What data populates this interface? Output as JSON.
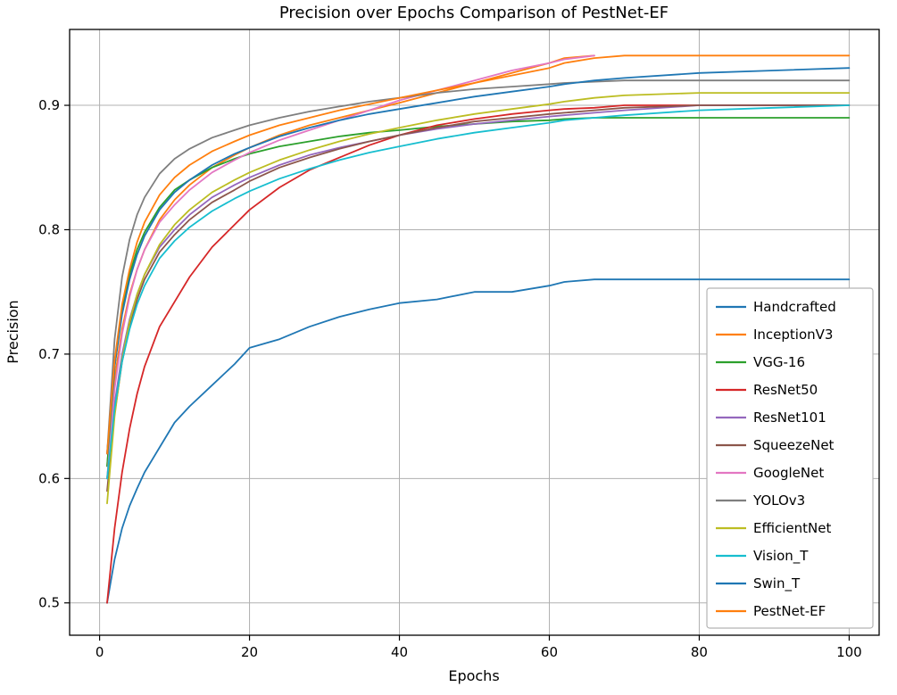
{
  "chart_data": {
    "type": "line",
    "title": "Precision over Epochs Comparison of PestNet-EF",
    "xlabel": "Epochs",
    "ylabel": "Precision",
    "x_ticks": [
      0,
      20,
      40,
      60,
      80,
      100
    ],
    "y_ticks": [
      0.5,
      0.6,
      0.7,
      0.8,
      0.9
    ],
    "xlim": [
      -4,
      104
    ],
    "ylim": [
      0.474,
      0.961
    ],
    "grid": true,
    "legend_position": "lower right",
    "grid_color": "#b0b0b0",
    "spine_color": "#000000",
    "legend_border_color": "#b3b3b3",
    "x": [
      1,
      2,
      3,
      4,
      5,
      6,
      8,
      10,
      12,
      15,
      18,
      20,
      24,
      28,
      32,
      36,
      40,
      45,
      50,
      55,
      60,
      62,
      66,
      70,
      80,
      90,
      100
    ],
    "series": [
      {
        "name": "Handcrafted",
        "color": "#1f77b4",
        "values": [
          0.5,
          0.535,
          0.56,
          0.578,
          0.592,
          0.605,
          0.625,
          0.645,
          0.658,
          0.675,
          0.692,
          0.705,
          0.712,
          0.722,
          0.73,
          0.736,
          0.741,
          0.744,
          0.75,
          0.75,
          0.755,
          0.758,
          0.76,
          0.76,
          0.76,
          0.76,
          0.76
        ]
      },
      {
        "name": "InceptionV3",
        "color": "#ff7f0e",
        "values": [
          0.61,
          0.68,
          0.72,
          0.748,
          0.768,
          0.784,
          0.808,
          0.824,
          0.836,
          0.85,
          0.86,
          0.866,
          0.876,
          0.884,
          0.89,
          0.896,
          0.902,
          0.91,
          0.918,
          0.926,
          0.934,
          0.938,
          0.94,
          null,
          null,
          null,
          null
        ]
      },
      {
        "name": "VGG-16",
        "color": "#2ca02c",
        "values": [
          0.61,
          0.69,
          0.736,
          0.764,
          0.784,
          0.798,
          0.818,
          0.832,
          0.84,
          0.85,
          0.857,
          0.861,
          0.867,
          0.871,
          0.875,
          0.878,
          0.88,
          0.883,
          0.885,
          0.887,
          0.888,
          0.889,
          0.89,
          0.89,
          0.89,
          0.89,
          0.89
        ]
      },
      {
        "name": "ResNet50",
        "color": "#d62728",
        "values": [
          0.5,
          0.56,
          0.605,
          0.64,
          0.668,
          0.69,
          0.722,
          0.742,
          0.762,
          0.786,
          0.804,
          0.816,
          0.834,
          0.848,
          0.858,
          0.868,
          0.876,
          0.884,
          0.889,
          0.893,
          0.896,
          0.897,
          0.898,
          0.9,
          0.9,
          0.9,
          0.9
        ]
      },
      {
        "name": "ResNet101",
        "color": "#9467bd",
        "values": [
          0.6,
          0.66,
          0.7,
          0.728,
          0.748,
          0.764,
          0.786,
          0.8,
          0.812,
          0.826,
          0.836,
          0.842,
          0.852,
          0.86,
          0.866,
          0.871,
          0.876,
          0.881,
          0.885,
          0.888,
          0.891,
          0.892,
          0.894,
          0.896,
          0.9,
          0.9,
          0.9
        ]
      },
      {
        "name": "SqueezeNet",
        "color": "#8c564b",
        "values": [
          0.59,
          0.652,
          0.694,
          0.722,
          0.744,
          0.76,
          0.782,
          0.796,
          0.808,
          0.822,
          0.832,
          0.839,
          0.85,
          0.858,
          0.865,
          0.871,
          0.876,
          0.882,
          0.887,
          0.89,
          0.893,
          0.894,
          0.896,
          0.898,
          0.9,
          0.9,
          0.9
        ]
      },
      {
        "name": "GoogleNet",
        "color": "#e377c2",
        "values": [
          0.6,
          0.672,
          0.716,
          0.746,
          0.768,
          0.784,
          0.806,
          0.82,
          0.832,
          0.846,
          0.856,
          0.862,
          0.872,
          0.88,
          0.888,
          0.896,
          0.904,
          0.912,
          0.92,
          0.928,
          0.934,
          0.937,
          0.94,
          null,
          null,
          null,
          null
        ]
      },
      {
        "name": "YOLOv3",
        "color": "#7f7f7f",
        "values": [
          0.62,
          0.712,
          0.762,
          0.792,
          0.812,
          0.826,
          0.845,
          0.857,
          0.865,
          0.874,
          0.88,
          0.884,
          0.89,
          0.895,
          0.899,
          0.903,
          0.906,
          0.91,
          0.913,
          0.915,
          0.917,
          0.918,
          0.919,
          0.92,
          0.92,
          0.92,
          0.92
        ]
      },
      {
        "name": "EfficientNet",
        "color": "#bcbd22",
        "values": [
          0.58,
          0.65,
          0.696,
          0.726,
          0.748,
          0.764,
          0.788,
          0.804,
          0.816,
          0.83,
          0.84,
          0.846,
          0.856,
          0.864,
          0.871,
          0.877,
          0.882,
          0.888,
          0.893,
          0.897,
          0.901,
          0.903,
          0.906,
          0.908,
          0.91,
          0.91,
          0.91
        ]
      },
      {
        "name": "Vision_T",
        "color": "#17becf",
        "values": [
          0.6,
          0.656,
          0.694,
          0.72,
          0.74,
          0.755,
          0.777,
          0.791,
          0.802,
          0.815,
          0.825,
          0.831,
          0.841,
          0.849,
          0.856,
          0.862,
          0.867,
          0.873,
          0.878,
          0.882,
          0.886,
          0.888,
          0.89,
          0.892,
          0.896,
          0.898,
          0.9
        ]
      },
      {
        "name": "Swin_T",
        "color": "#1f77b4",
        "values": [
          0.62,
          0.69,
          0.732,
          0.76,
          0.78,
          0.795,
          0.816,
          0.83,
          0.84,
          0.852,
          0.861,
          0.866,
          0.875,
          0.882,
          0.888,
          0.893,
          0.897,
          0.902,
          0.907,
          0.911,
          0.915,
          0.917,
          0.92,
          0.922,
          0.926,
          0.928,
          0.93
        ]
      },
      {
        "name": "PestNet-EF",
        "color": "#ff7f0e",
        "values": [
          0.62,
          0.695,
          0.74,
          0.768,
          0.79,
          0.806,
          0.828,
          0.842,
          0.852,
          0.863,
          0.871,
          0.876,
          0.884,
          0.89,
          0.896,
          0.901,
          0.906,
          0.912,
          0.918,
          0.924,
          0.93,
          0.934,
          0.938,
          0.94,
          0.94,
          0.94,
          0.94
        ]
      }
    ]
  }
}
